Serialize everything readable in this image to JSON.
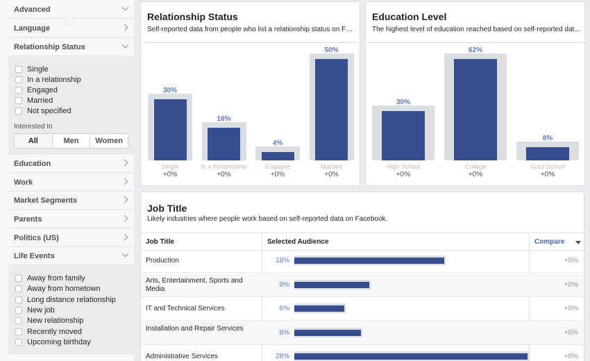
{
  "sidebar": {
    "sections_top": [
      {
        "label": "Advanced",
        "state": "down"
      },
      {
        "label": "Language",
        "state": "right"
      },
      {
        "label": "Relationship Status",
        "state": "down"
      }
    ],
    "relationship_options": [
      "Single",
      "In a relationship",
      "Engaged",
      "Married",
      "Not specified"
    ],
    "interested_in_label": "Interested In",
    "interested_in_options": [
      "All",
      "Men",
      "Women"
    ],
    "sections_mid": [
      {
        "label": "Education"
      },
      {
        "label": "Work"
      },
      {
        "label": "Market Segments"
      },
      {
        "label": "Parents"
      },
      {
        "label": "Politics (US)"
      }
    ],
    "life_events_label": "Life Events",
    "life_events_options": [
      "Away from family",
      "Away from hometown",
      "Long distance relationship",
      "New job",
      "New relationship",
      "Recently moved",
      "Upcoming birthday"
    ]
  },
  "relationship": {
    "title": "Relationship Status",
    "subtitle": "Self-reported data from people who list a relationship status on Fa...",
    "bars": [
      {
        "label": "Single",
        "pct": "30%",
        "value": 30,
        "delta": "+0%"
      },
      {
        "label": "In a Relationship",
        "pct": "16%",
        "value": 16,
        "delta": "+0%"
      },
      {
        "label": "Engaged",
        "pct": "4%",
        "value": 4,
        "delta": "+0%"
      },
      {
        "label": "Married",
        "pct": "50%",
        "value": 50,
        "delta": "+0%"
      }
    ]
  },
  "education": {
    "title": "Education Level",
    "subtitle": "The highest level of education reached based on self-reported dat...",
    "bars": [
      {
        "label": "High School",
        "pct": "30%",
        "value": 30,
        "delta": "+0%"
      },
      {
        "label": "College",
        "pct": "62%",
        "value": 62,
        "delta": "+0%"
      },
      {
        "label": "Grad School",
        "pct": "8%",
        "value": 8,
        "delta": "+0%"
      }
    ]
  },
  "job": {
    "title": "Job Title",
    "subtitle": "Likely industries where people work based on self-reported data on Facebook.",
    "col_title": "Job Title",
    "col_audience": "Selected Audience",
    "col_compare": "Compare",
    "rows": [
      {
        "name": "Production",
        "pct": "18%",
        "value": 18,
        "delta": "+0%"
      },
      {
        "name": "Arts, Entertainment, Sports and Media",
        "pct": "9%",
        "value": 9,
        "delta": "+0%"
      },
      {
        "name": "IT and Technical Services",
        "pct": "6%",
        "value": 6,
        "delta": "+0%"
      },
      {
        "name": "Installation and Repair Services",
        "pct": "8%",
        "value": 8,
        "delta": "+0%"
      },
      {
        "name": "Administrative Services",
        "pct": "28%",
        "value": 28,
        "delta": "+0%"
      }
    ]
  },
  "colors": {
    "bar": "#364e8d",
    "bar_bg": "#dadde1",
    "pct_text": "#5b79bc",
    "link": "#4267b2"
  }
}
